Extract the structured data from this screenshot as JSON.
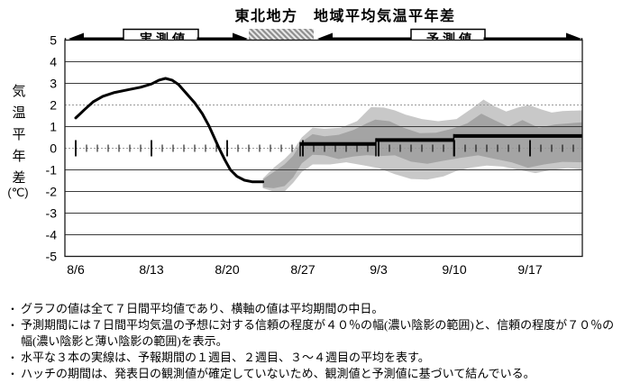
{
  "title": "東北地方　地域平均気温平年差",
  "top_bar": {
    "observed_label": "実測値",
    "forecast_label": "予測値"
  },
  "y_axis": {
    "title_chars": "気温平年差",
    "unit": "(℃)"
  },
  "chart_data": {
    "type": "line",
    "region": "東北地方",
    "quantity": "地域平均気温平年差",
    "ylabel": "気温平年差(℃)",
    "ylim": [
      -5,
      5
    ],
    "y_ticks": [
      5,
      4,
      3,
      2,
      1,
      0,
      -1,
      -2,
      -3,
      -4,
      -5
    ],
    "dotted_y_gridlines": [
      2,
      0
    ],
    "x_ticks": [
      {
        "label": "8/6",
        "day": 0
      },
      {
        "label": "8/13",
        "day": 7
      },
      {
        "label": "8/20",
        "day": 14
      },
      {
        "label": "8/27",
        "day": 21
      },
      {
        "label": "9/3",
        "day": 28
      },
      {
        "label": "9/10",
        "day": 35
      },
      {
        "label": "9/17",
        "day": 42
      }
    ],
    "x_range_days": [
      -1,
      46.8
    ],
    "observed_line_7day_mean": [
      [
        0,
        1.4
      ],
      [
        0.8,
        1.78
      ],
      [
        1.6,
        2.14
      ],
      [
        2.5,
        2.4
      ],
      [
        3.6,
        2.58
      ],
      [
        4.8,
        2.7
      ],
      [
        6,
        2.82
      ],
      [
        7,
        2.97
      ],
      [
        7.7,
        3.15
      ],
      [
        8.3,
        3.23
      ],
      [
        8.9,
        3.15
      ],
      [
        9.5,
        2.95
      ],
      [
        10.2,
        2.55
      ],
      [
        11,
        2.1
      ],
      [
        11.7,
        1.6
      ],
      [
        12.3,
        1.05
      ],
      [
        12.8,
        0.5
      ],
      [
        13.3,
        -0.05
      ],
      [
        13.8,
        -0.55
      ],
      [
        14.3,
        -1.0
      ],
      [
        14.9,
        -1.3
      ],
      [
        15.6,
        -1.48
      ],
      [
        16.3,
        -1.55
      ],
      [
        17.3,
        -1.55
      ]
    ],
    "hatch_connection_days": [
      15.9,
      22.0
    ],
    "forecast_weekly_means": [
      {
        "label": "1週目",
        "from_day": 20.75,
        "to_day": 27.75,
        "value": 0.2
      },
      {
        "label": "2週目",
        "from_day": 27.75,
        "to_day": 34.95,
        "value": 0.38
      },
      {
        "label": "3～4週目",
        "from_day": 34.95,
        "to_day": 46.8,
        "value": 0.57
      }
    ],
    "confidence_band_40pct": {
      "top": [
        [
          17.3,
          -1.45
        ],
        [
          18.3,
          -1.1
        ],
        [
          19.3,
          -0.75
        ],
        [
          20.1,
          -0.35
        ],
        [
          20.9,
          0.3
        ],
        [
          21.9,
          0.65
        ],
        [
          23,
          0.55
        ],
        [
          24.3,
          0.62
        ],
        [
          25.7,
          0.85
        ],
        [
          26.9,
          1.15
        ],
        [
          27.7,
          1.32
        ],
        [
          29,
          1.25
        ],
        [
          30.3,
          0.95
        ],
        [
          31.8,
          0.7
        ],
        [
          33.3,
          0.72
        ],
        [
          34.8,
          0.9
        ],
        [
          36.2,
          1.15
        ],
        [
          37.5,
          1.6
        ],
        [
          38.7,
          1.3
        ],
        [
          40,
          1.0
        ],
        [
          41.3,
          1.3
        ],
        [
          42.8,
          0.95
        ],
        [
          44.3,
          1.1
        ],
        [
          46.8,
          1.2
        ]
      ],
      "bottom": [
        [
          17.3,
          -1.8
        ],
        [
          18.3,
          -1.85
        ],
        [
          19.3,
          -1.75
        ],
        [
          20.1,
          -1.35
        ],
        [
          20.9,
          -0.7
        ],
        [
          21.9,
          -0.3
        ],
        [
          23,
          -0.33
        ],
        [
          24.3,
          -0.5
        ],
        [
          25.7,
          -0.38
        ],
        [
          26.9,
          -0.32
        ],
        [
          28.2,
          -0.36
        ],
        [
          29.5,
          -0.33
        ],
        [
          31,
          -0.62
        ],
        [
          32.5,
          -0.72
        ],
        [
          34,
          -0.58
        ],
        [
          35.5,
          -0.45
        ],
        [
          37.2,
          -0.33
        ],
        [
          38.8,
          -0.5
        ],
        [
          40.3,
          -0.65
        ],
        [
          41.8,
          -0.9
        ],
        [
          43.3,
          -0.75
        ],
        [
          45,
          -0.63
        ],
        [
          46.8,
          -0.65
        ]
      ]
    },
    "confidence_band_70pct": {
      "top": [
        [
          17.3,
          -1.4
        ],
        [
          18.3,
          -0.9
        ],
        [
          19.3,
          -0.5
        ],
        [
          20.1,
          -0.1
        ],
        [
          20.9,
          0.5
        ],
        [
          21.9,
          0.95
        ],
        [
          23,
          0.9
        ],
        [
          24.5,
          0.95
        ],
        [
          26,
          1.25
        ],
        [
          27.3,
          1.9
        ],
        [
          28.5,
          1.88
        ],
        [
          29.5,
          1.75
        ],
        [
          30.5,
          1.55
        ],
        [
          32,
          1.35
        ],
        [
          33.5,
          1.25
        ],
        [
          35.2,
          1.35
        ],
        [
          36.8,
          1.9
        ],
        [
          37.7,
          2.25
        ],
        [
          38.7,
          1.95
        ],
        [
          39.8,
          1.7
        ],
        [
          41,
          1.9
        ],
        [
          41.9,
          2.0
        ],
        [
          43,
          1.8
        ],
        [
          44,
          1.65
        ],
        [
          45,
          1.72
        ],
        [
          46.8,
          1.75
        ]
      ],
      "bottom": [
        [
          17.3,
          -1.85
        ],
        [
          18.3,
          -2.0
        ],
        [
          19.3,
          -2.0
        ],
        [
          20.1,
          -1.6
        ],
        [
          20.9,
          -1.1
        ],
        [
          21.9,
          -0.75
        ],
        [
          23.5,
          -0.75
        ],
        [
          25,
          -0.65
        ],
        [
          26.5,
          -0.78
        ],
        [
          28,
          -0.92
        ],
        [
          29.5,
          -1.2
        ],
        [
          31,
          -1.42
        ],
        [
          32.5,
          -1.45
        ],
        [
          34,
          -1.3
        ],
        [
          35.2,
          -1.05
        ],
        [
          36.5,
          -0.9
        ],
        [
          38,
          -0.8
        ],
        [
          39.5,
          -0.85
        ],
        [
          41,
          -1.0
        ],
        [
          42.5,
          -1.15
        ],
        [
          44,
          -1.0
        ],
        [
          45.5,
          -0.92
        ],
        [
          46.8,
          -0.98
        ]
      ]
    },
    "colors": {
      "band40": "#a4a4a4",
      "band70": "#c8c8c8",
      "line": "#000000",
      "grid": "#3c3c3c",
      "grid_dotted": "#999999",
      "hatch": "#8f8f8f"
    },
    "legend_position": "top",
    "grid": true
  },
  "footnotes": [
    "グラフの値は全て７日間平均値であり、横軸の値は平均期間の中日。",
    "予測期間には７日間平均気温の予想に対する信頼の程度が４０％の幅(濃い陰影の範囲)と、信頼の程度が７０％の幅(濃い陰影と薄い陰影の範囲)を表示。",
    "水平な３本の実線は、予報期間の１週目、２週目、３～４週目の平均を表す。",
    "ハッチの期間は、発表日の観測値が確定していないため、観測値と予測値に基づいて結んでいる。"
  ]
}
